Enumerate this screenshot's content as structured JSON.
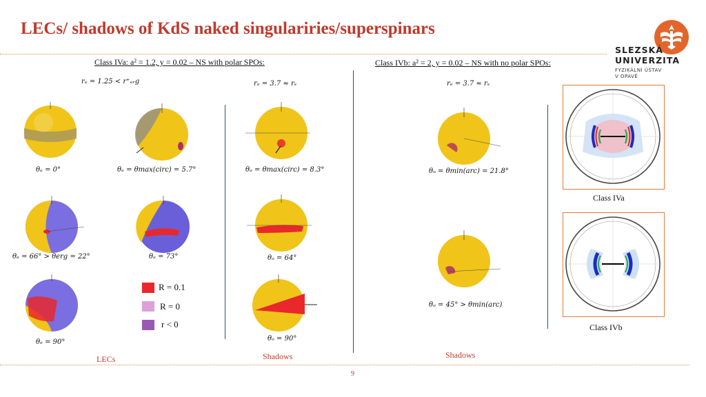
{
  "title": "LECs/ shadows of KdS naked singulariries/superspinars",
  "class_a": "Class IVa: a² = 1.2, y = 0.02 – NS with polar SPOs:",
  "class_b": "Class IVb: a² = 2, y = 0.02 – NS with no polar SPOs:",
  "re_labels": [
    "rₑ = 1.25 < r⁺ₑᵣg",
    "rₑ = 3.7 ≈ rₛ",
    "rₑ = 3.7 ≈ rₛ"
  ],
  "logo": {
    "line1": "SLEZSKÁ",
    "line2": "UNIVERZITA",
    "line3": "FYZIKÁLNÍ ÚSTAV",
    "line4": "V OPAVĚ"
  },
  "captions": {
    "c1": "θₑ = 0°",
    "c2": "θₑ = θmax(circ) = 5.7°",
    "c3": "θₒ = θmax(circ) = 8.3°",
    "c4": "θₒ = θmin(arc) = 21.8°",
    "c5": "θₑ = 66° > θerg = 22°",
    "c6": "θₑ = 73°",
    "c7": "θₒ = 64°",
    "c8": "θₒ = 45° > θmin(arc)",
    "c9": "θₑ = 90°",
    "c10": "θₒ = 90°"
  },
  "legend": [
    {
      "label": "R = 0.1",
      "color": "#e8282b"
    },
    {
      "label": "R = 0",
      "color": "#dda0dd"
    },
    {
      "label": "r < 0",
      "color": "#9b59b6"
    }
  ],
  "sections": {
    "lecs": "LECs",
    "shadows1": "Shadows",
    "shadows2": "Shadows"
  },
  "panel_labels": {
    "a": "Class IVa",
    "b": "Class IVb"
  },
  "page_number": "9",
  "colors": {
    "accent": "#c0392b",
    "panel_border": "#e07b39",
    "sphere": "#f0c419",
    "separator": "#2f4f6f"
  }
}
